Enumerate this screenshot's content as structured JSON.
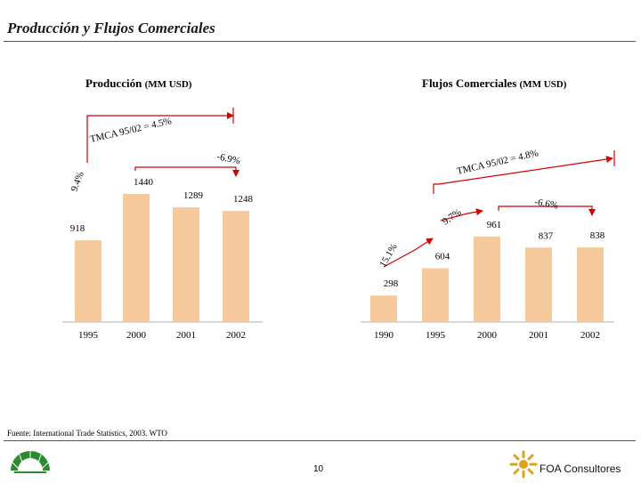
{
  "slide": {
    "title": "Producción y Flujos Comerciales",
    "source": "Fuente: International Trade Statistics, 2003. WTO",
    "page_number": "10",
    "brand_right": "FOA Consultores"
  },
  "panels": {
    "left": {
      "title": "Producción",
      "unit": "(MM USD)"
    },
    "right": {
      "title": "Flujos Comerciales",
      "unit": "(MM USD)"
    }
  },
  "colors": {
    "bar": "#f5c99b",
    "arrow": "#d40000",
    "text": "#000000"
  },
  "icons": {
    "left_logo": "caniem-logo-icon",
    "right_logo": "foa-sun-logo-icon"
  },
  "annotations": {
    "left_tmca": "TMCA 95/02 = 4.5%",
    "left_growth": "9.4%",
    "left_change": "-6.9%",
    "right_tmca": "TMCA 95/02 = 4.8%",
    "right_growth_a": "15.1%",
    "right_growth_b": "9.7%",
    "right_change": "-6.6%"
  },
  "chart_data": [
    {
      "type": "bar",
      "title": "Producción (MM USD)",
      "categories": [
        "1995",
        "2000",
        "2001",
        "2002"
      ],
      "values": [
        918,
        1440,
        1289,
        1248
      ],
      "value_labels": [
        "918",
        "1440",
        "1289",
        "1248"
      ],
      "ylim": [
        0,
        1500
      ]
    },
    {
      "type": "bar",
      "title": "Flujos Comerciales (MM USD)",
      "categories": [
        "1990",
        "1995",
        "2000",
        "2001",
        "2002"
      ],
      "values": [
        298,
        604,
        961,
        837,
        838
      ],
      "value_labels": [
        "298",
        "604",
        "961",
        "837",
        "838"
      ],
      "ylim": [
        0,
        1500
      ]
    }
  ]
}
